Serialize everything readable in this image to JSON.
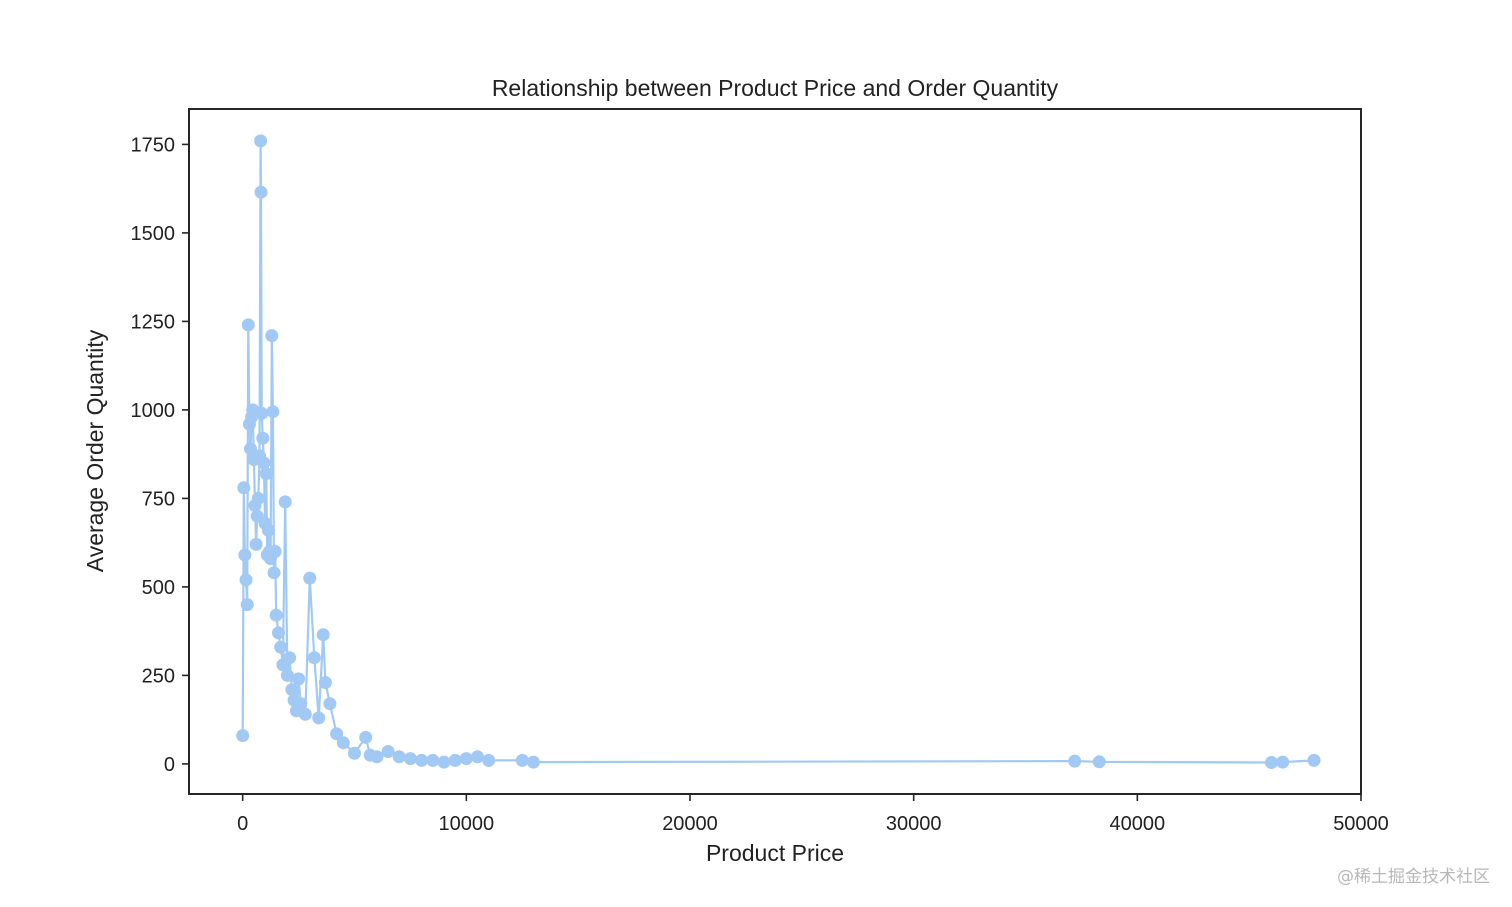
{
  "watermark": "@稀土掘金技术社区",
  "chart_data": {
    "type": "line",
    "markers": true,
    "title": "Relationship between Product Price and Order Quantity",
    "xlabel": "Product Price",
    "ylabel": "Average Order Quantity",
    "xlim": [
      -2400,
      50000
    ],
    "ylim": [
      -85,
      1850
    ],
    "xticks": [
      0,
      10000,
      20000,
      30000,
      40000,
      50000
    ],
    "xtick_labels": [
      "0",
      "10000",
      "20000",
      "30000",
      "40000",
      "50000"
    ],
    "yticks": [
      0,
      250,
      500,
      750,
      1000,
      1250,
      1500,
      1750
    ],
    "ytick_labels": [
      "0",
      "250",
      "500",
      "750",
      "1000",
      "1250",
      "1500",
      "1750"
    ],
    "grid": false,
    "color": "#a1c9f4",
    "series": [
      {
        "x": [
          0,
          50,
          100,
          150,
          200,
          250,
          300,
          350,
          400,
          450,
          500,
          550,
          600,
          650,
          700,
          750,
          800,
          820,
          850,
          900,
          950,
          1000,
          1050,
          1100,
          1150,
          1200,
          1250,
          1300,
          1350,
          1400,
          1450,
          1500,
          1600,
          1700,
          1800,
          1900,
          2000,
          2100,
          2200,
          2300,
          2400,
          2500,
          2600,
          2800,
          3000,
          3200,
          3400,
          3600,
          3700,
          3900,
          4200,
          4500,
          5000,
          5500,
          5700,
          6000,
          6500,
          7000,
          7500,
          8000,
          8500,
          9000,
          9500,
          10000,
          10500,
          11000,
          12500,
          13000,
          37200,
          38300,
          46000,
          46500,
          47900
        ],
        "y": [
          80,
          780,
          590,
          520,
          450,
          1240,
          960,
          890,
          980,
          1000,
          860,
          730,
          620,
          700,
          750,
          870,
          1760,
          1615,
          990,
          920,
          850,
          680,
          820,
          590,
          660,
          600,
          580,
          1210,
          995,
          540,
          600,
          420,
          370,
          330,
          280,
          740,
          250,
          300,
          210,
          180,
          150,
          240,
          170,
          140,
          525,
          300,
          130,
          365,
          230,
          170,
          85,
          60,
          30,
          75,
          25,
          20,
          35,
          20,
          15,
          10,
          10,
          5,
          10,
          15,
          20,
          10,
          10,
          5,
          8,
          6,
          4,
          5,
          10
        ]
      }
    ]
  }
}
